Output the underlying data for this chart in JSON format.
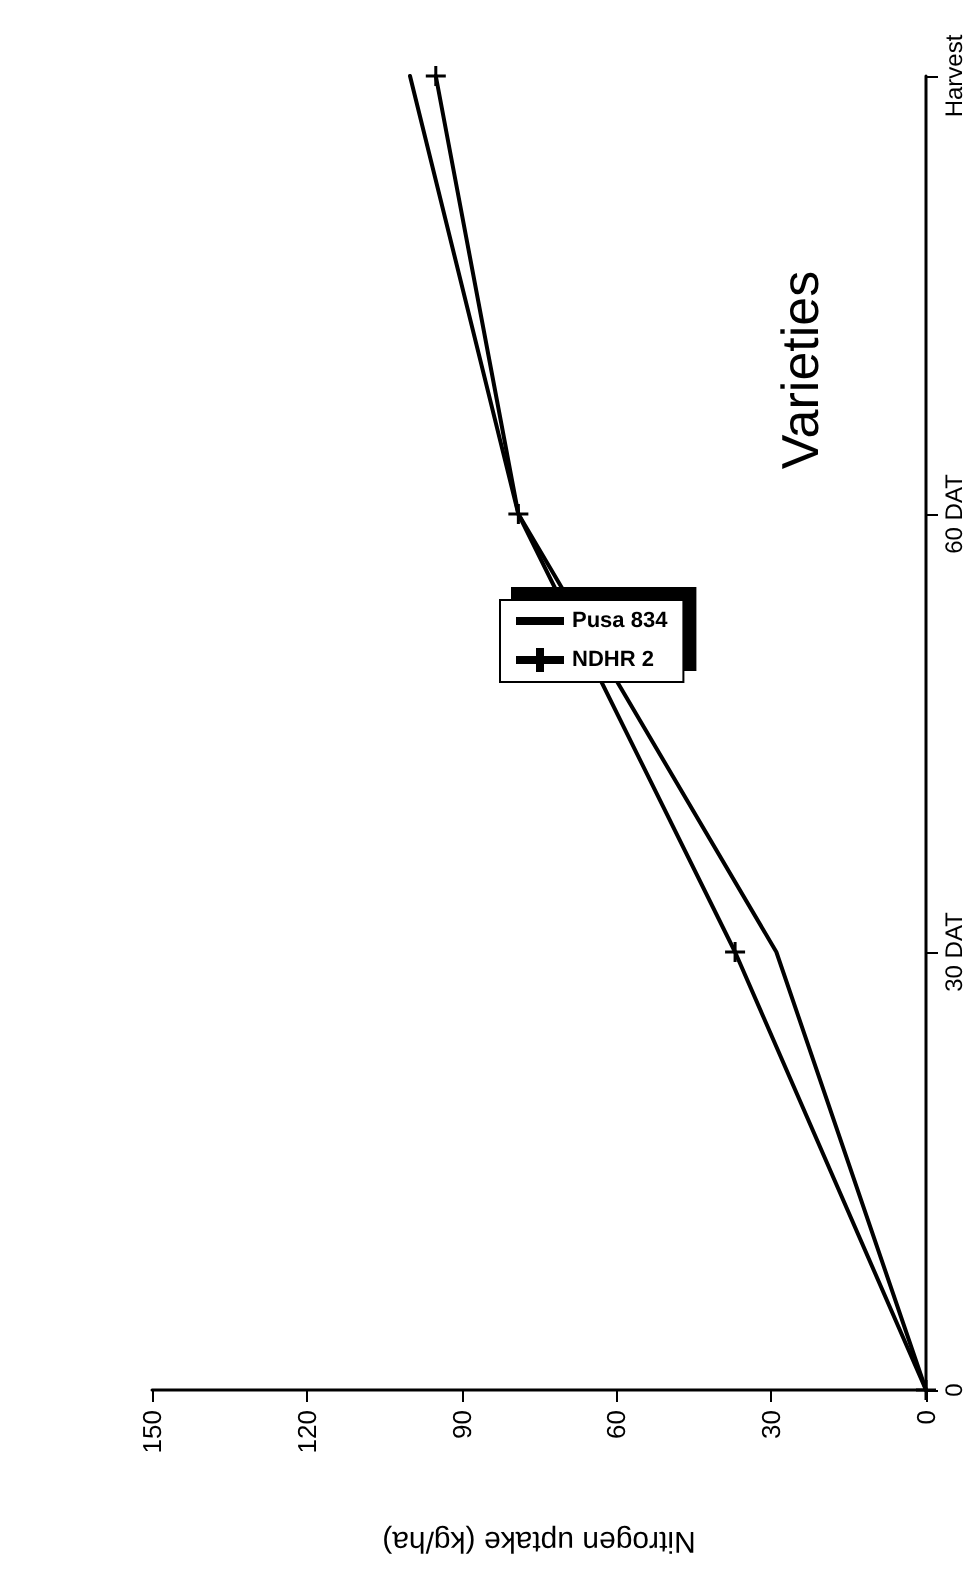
{
  "chart_data": {
    "type": "line",
    "orientation": "horizontal",
    "title": "Varieties",
    "xlabel": "Nitrogen uptake (kg/ha)",
    "categories": [
      "Harvest",
      "60 DAT",
      "30 DAT",
      "0"
    ],
    "series": [
      {
        "name": "Pusa 834",
        "color": "#000000",
        "values": [
          100,
          79,
          29,
          0
        ]
      },
      {
        "name": "NDHR 2",
        "color": "#000000",
        "marker": "cross",
        "values": [
          95,
          79,
          37,
          0
        ]
      }
    ],
    "xlim": [
      150,
      0
    ],
    "xticks": [
      150,
      120,
      90,
      60,
      30,
      0
    ],
    "grid": false,
    "legend": "right",
    "line_style": "solid"
  }
}
